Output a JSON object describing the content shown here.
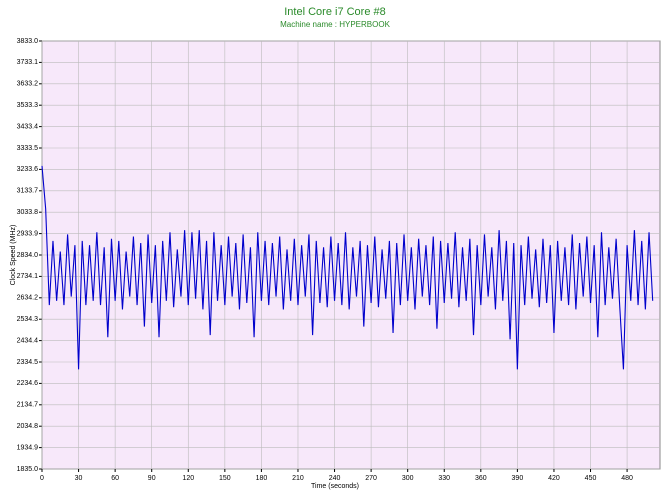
{
  "chart_data": {
    "type": "line",
    "title": "Intel Core i7 Core #8",
    "subtitle": "Machine name : HYPERBOOK",
    "xlabel": "Time (seconds)",
    "ylabel": "Clock Speed (MHz)",
    "color": "#0000cc",
    "grid": true,
    "xlim": [
      0,
      507
    ],
    "xticks": [
      0,
      30,
      60,
      90,
      120,
      150,
      180,
      210,
      240,
      270,
      300,
      330,
      360,
      390,
      420,
      450,
      480
    ],
    "ylim": [
      1835.0,
      3833.0
    ],
    "yticks": [
      {
        "value": 1835.0,
        "label": "1835.0"
      },
      1934.9,
      2034.8,
      2134.7,
      2234.6,
      2334.5,
      2434.4,
      2534.3,
      2634.2,
      2734.1,
      {
        "value": 2834.0,
        "label": "2834.0"
      },
      2933.9,
      3033.8,
      3133.7,
      3233.6,
      3333.5,
      3433.4,
      3533.3,
      3633.2,
      3733.1,
      {
        "value": 3833.0,
        "label": "3833.0"
      }
    ],
    "x": [
      0,
      3,
      6,
      9,
      12,
      15,
      18,
      21,
      24,
      27,
      30,
      33,
      36,
      39,
      42,
      45,
      48,
      51,
      54,
      57,
      60,
      63,
      66,
      69,
      72,
      75,
      78,
      81,
      84,
      87,
      90,
      93,
      96,
      99,
      102,
      105,
      108,
      111,
      114,
      117,
      120,
      123,
      126,
      129,
      132,
      135,
      138,
      141,
      144,
      147,
      150,
      153,
      156,
      159,
      162,
      165,
      168,
      171,
      174,
      177,
      180,
      183,
      186,
      189,
      192,
      195,
      198,
      201,
      204,
      207,
      210,
      213,
      216,
      219,
      222,
      225,
      228,
      231,
      234,
      237,
      240,
      243,
      246,
      249,
      252,
      255,
      258,
      261,
      264,
      267,
      270,
      273,
      276,
      279,
      282,
      285,
      288,
      291,
      294,
      297,
      300,
      303,
      306,
      309,
      312,
      315,
      318,
      321,
      324,
      327,
      330,
      333,
      336,
      339,
      342,
      345,
      348,
      351,
      354,
      357,
      360,
      363,
      366,
      369,
      372,
      375,
      378,
      381,
      384,
      387,
      390,
      393,
      396,
      399,
      402,
      405,
      408,
      411,
      414,
      417,
      420,
      423,
      426,
      429,
      432,
      435,
      438,
      441,
      444,
      447,
      450,
      453,
      456,
      459,
      462,
      465,
      468,
      471,
      474,
      477,
      480,
      483,
      486,
      489,
      492,
      495,
      498,
      501
    ],
    "values": [
      3250,
      3050,
      2600,
      2900,
      2620,
      2850,
      2600,
      2930,
      2640,
      2880,
      2300,
      2900,
      2600,
      2880,
      2620,
      2940,
      2600,
      2870,
      2450,
      2910,
      2620,
      2900,
      2580,
      2850,
      2640,
      2920,
      2600,
      2890,
      2500,
      2930,
      2610,
      2880,
      2450,
      2900,
      2620,
      2940,
      2590,
      2860,
      2640,
      2950,
      2600,
      2940,
      2630,
      2950,
      2580,
      2900,
      2460,
      2940,
      2620,
      2880,
      2600,
      2920,
      2640,
      2890,
      2580,
      2930,
      2610,
      2870,
      2450,
      2940,
      2620,
      2900,
      2600,
      2890,
      2640,
      2920,
      2580,
      2860,
      2620,
      2910,
      2600,
      2880,
      2640,
      2930,
      2460,
      2900,
      2610,
      2870,
      2590,
      2920,
      2620,
      2890,
      2600,
      2940,
      2580,
      2870,
      2640,
      2900,
      2500,
      2880,
      2610,
      2920,
      2590,
      2860,
      2630,
      2900,
      2470,
      2890,
      2600,
      2930,
      2620,
      2870,
      2580,
      2910,
      2640,
      2880,
      2600,
      2920,
      2490,
      2900,
      2610,
      2890,
      2630,
      2940,
      2590,
      2870,
      2620,
      2910,
      2460,
      2880,
      2600,
      2930,
      2640,
      2870,
      2580,
      2950,
      2620,
      2900,
      2440,
      2890,
      2300,
      2880,
      2600,
      2920,
      2630,
      2860,
      2590,
      2910,
      2610,
      2880,
      2470,
      2900,
      2620,
      2870,
      2600,
      2930,
      2580,
      2890,
      2640,
      2920,
      2610,
      2880,
      2450,
      2940,
      2600,
      2870,
      2630,
      2910,
      2590,
      2300,
      2880,
      2620,
      2950,
      2600,
      2900,
      2580,
      2940,
      2620
    ]
  }
}
